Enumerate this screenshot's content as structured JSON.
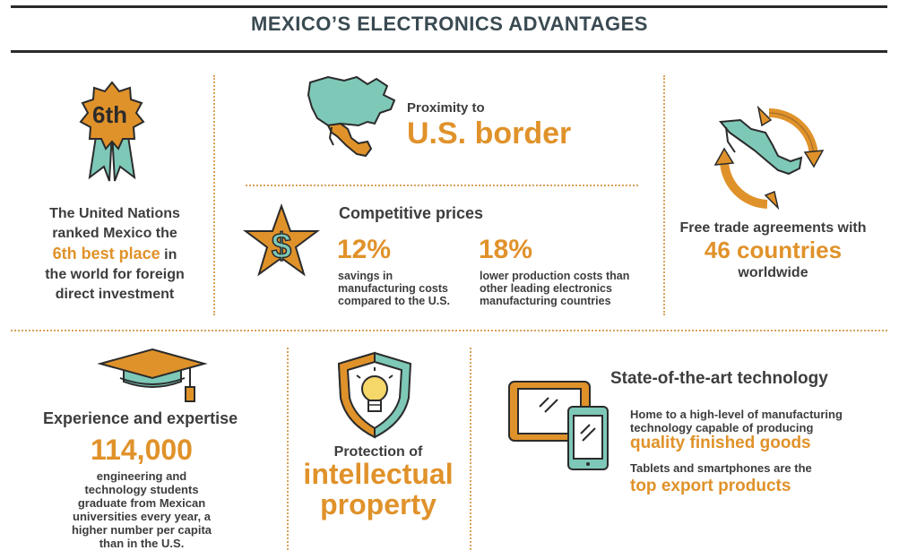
{
  "header": {
    "title": "MEXICO’S ELECTRONICS ADVANTAGES"
  },
  "un_rank": {
    "badge": "6th",
    "line1": "The United Nations",
    "line2": "ranked Mexico the",
    "highlight": "6th best place",
    "line3_rest": " in",
    "line4": "the world for foreign",
    "line5": "direct investment"
  },
  "proximity": {
    "label": "Proximity to",
    "headline": "U.S. border"
  },
  "prices": {
    "title": "Competitive prices",
    "stat1_value": "12%",
    "stat1_desc": [
      "savings in",
      "manufacturing costs",
      "compared to the U.S."
    ],
    "stat2_value": "18%",
    "stat2_desc": [
      "lower production costs than",
      "other leading electronics",
      "manufacturing countries"
    ]
  },
  "trade": {
    "label": "Free trade agreements with",
    "headline": "46 countries",
    "suffix": "worldwide"
  },
  "expertise": {
    "title": "Experience and expertise",
    "value": "114,000",
    "desc": [
      "engineering and",
      "technology students",
      "graduate from Mexican",
      "universities every year, a",
      "higher number per capita",
      "than in the U.S."
    ]
  },
  "ip": {
    "label": "Protection of",
    "headline1": "intellectual",
    "headline2": "property"
  },
  "tech": {
    "title": "State-of-the-art technology",
    "desc1": [
      "Home to a high-level of manufacturing",
      "technology capable of producing"
    ],
    "highlight1": "quality finished goods",
    "desc2": "Tablets and smartphones are the",
    "highlight2": "top export products"
  },
  "colors": {
    "teal": "#7ec8b8",
    "orange": "#e0922a",
    "dark": "#2b2b2b"
  },
  "icons": [
    "ribbon-badge-icon",
    "north-america-map-icon",
    "dollar-star-icon",
    "mexico-cycle-icon",
    "graduation-cap-icon",
    "lightbulb-shield-icon",
    "tablet-phone-icon"
  ]
}
